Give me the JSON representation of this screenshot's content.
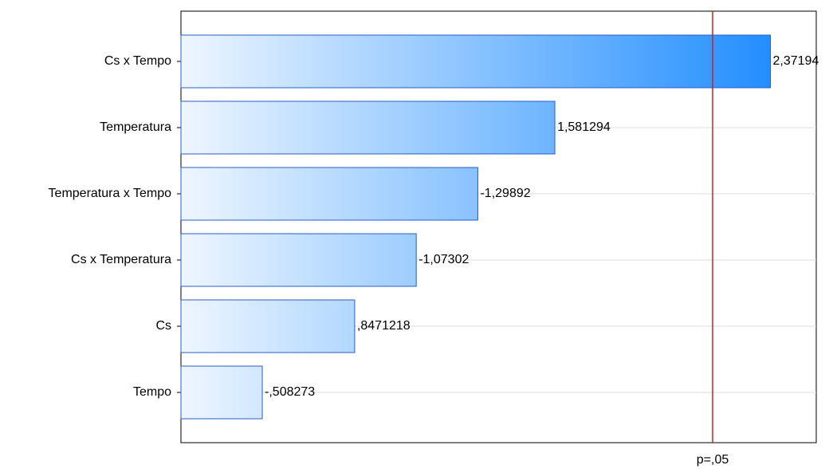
{
  "chart_data": {
    "type": "pareto",
    "categories": [
      "Cs x Tempo",
      "Temperatura",
      "Temperatura x Tempo",
      "Cs x Temperatura",
      "Cs",
      "Tempo"
    ],
    "values": [
      2.37194,
      1.581294,
      -1.29892,
      -1.07302,
      0.8471218,
      -0.508273
    ],
    "value_labels": [
      "2,37194",
      "1,581294",
      "-1,29892",
      "-1,07302",
      ",8471218",
      "-,508273"
    ],
    "color": "#1e8cff",
    "xlim": [
      0.21,
      2.54
    ],
    "grid": true,
    "reference_line": {
      "value": 2.16,
      "label": "p=,05",
      "color": "#cc2222"
    }
  }
}
